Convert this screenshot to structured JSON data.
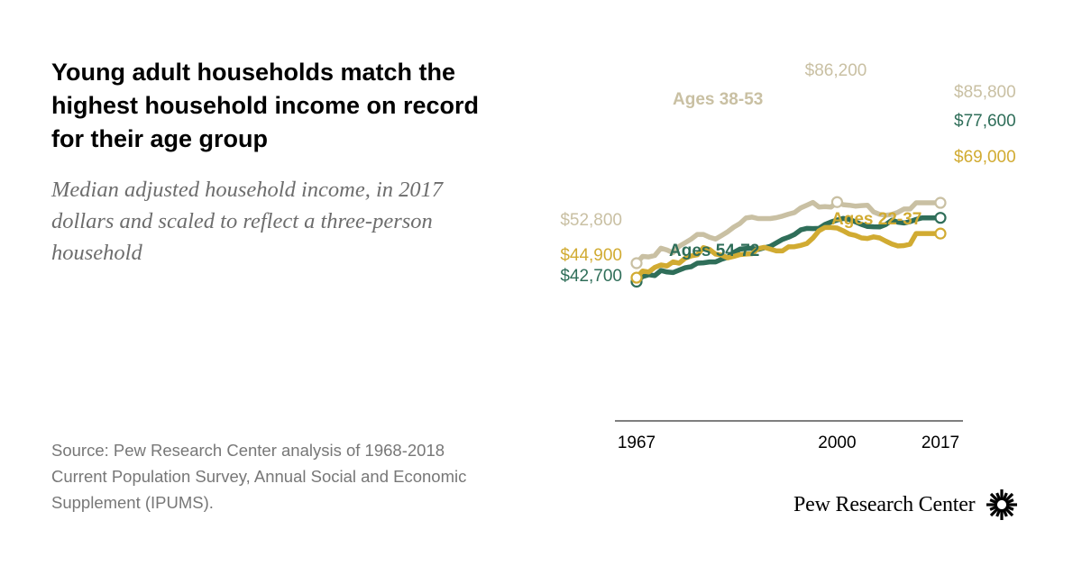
{
  "title": "Young adult households match the highest household income on record for their age group",
  "subtitle": "Median adjusted household income, in 2017 dollars and scaled to reflect a three-person household",
  "source": "Source: Pew Research Center analysis of 1968-2018 Current Population Survey, Annual Social and Economic Supplement (IPUMS).",
  "brand": {
    "name": "Pew Research Center",
    "logo_icon": "pew-sunburst-icon"
  },
  "chart_data": {
    "type": "line",
    "title": "Young adult households match the highest household income on record for their age group",
    "xlabel": "",
    "ylabel": "",
    "xlim": [
      1967,
      2017
    ],
    "ylim": [
      40000,
      90000
    ],
    "x_ticks": [
      "1967",
      "2000",
      "2017"
    ],
    "grid": false,
    "series": [
      {
        "name": "Ages 38-53",
        "label": "Ages 38-53",
        "color": "#c9c0a3",
        "start_label": "$52,800",
        "end_label": "$85,800",
        "peak_label": "$86,200",
        "peak_year": 2000,
        "x": [
          1967,
          1968,
          1969,
          1970,
          1971,
          1972,
          1973,
          1974,
          1975,
          1976,
          1977,
          1978,
          1979,
          1980,
          1981,
          1982,
          1983,
          1984,
          1985,
          1986,
          1987,
          1988,
          1989,
          1990,
          1991,
          1992,
          1993,
          1994,
          1995,
          1996,
          1997,
          1998,
          1999,
          2000,
          2001,
          2002,
          2003,
          2004,
          2005,
          2006,
          2007,
          2008,
          2009,
          2010,
          2011,
          2012,
          2013,
          2014,
          2015,
          2016,
          2017
        ],
        "values": [
          52800,
          56500,
          56200,
          57000,
          61000,
          60000,
          58500,
          62000,
          64000,
          66000,
          68500,
          68500,
          67000,
          66000,
          68000,
          70000,
          72500,
          74500,
          77500,
          78000,
          77200,
          77200,
          77200,
          77700,
          78500,
          79600,
          80500,
          83000,
          84500,
          86000,
          83500,
          83700,
          83500,
          86200,
          84800,
          84500,
          84000,
          84300,
          84500,
          80800,
          79500,
          79000,
          79400,
          80600,
          82400,
          82400,
          85800,
          85800,
          85800,
          85800,
          85800
        ]
      },
      {
        "name": "Ages 54-72",
        "label": "Ages 54-72",
        "color": "#2f6e59",
        "start_label": "$42,700",
        "end_label": "$77,600",
        "x": [
          1967,
          1968,
          1969,
          1970,
          1971,
          1972,
          1973,
          1974,
          1975,
          1976,
          1977,
          1978,
          1979,
          1980,
          1981,
          1982,
          1983,
          1984,
          1985,
          1986,
          1987,
          1988,
          1989,
          1990,
          1991,
          1992,
          1993,
          1994,
          1995,
          1996,
          1997,
          1998,
          1999,
          2000,
          2001,
          2002,
          2003,
          2004,
          2005,
          2006,
          2007,
          2008,
          2009,
          2010,
          2011,
          2012,
          2013,
          2014,
          2015,
          2016,
          2017
        ],
        "values": [
          42700,
          45500,
          46500,
          46000,
          48800,
          48000,
          47700,
          49000,
          50300,
          50900,
          52800,
          53000,
          53500,
          53500,
          55000,
          56000,
          58700,
          60500,
          60800,
          61000,
          60300,
          61200,
          62000,
          63900,
          65800,
          67000,
          68500,
          71000,
          71800,
          71700,
          71800,
          74000,
          75300,
          76400,
          77300,
          76700,
          75400,
          74000,
          72900,
          72700,
          72600,
          73900,
          76300,
          75200,
          74800,
          75500,
          76700,
          77600,
          77600,
          77600,
          77600
        ]
      },
      {
        "name": "Ages 22-37",
        "label": "Ages 22-37",
        "color": "#d1ab32",
        "start_label": "$44,900",
        "end_label": "$69,000",
        "x": [
          1967,
          1968,
          1969,
          1970,
          1971,
          1972,
          1973,
          1974,
          1975,
          1976,
          1977,
          1978,
          1979,
          1980,
          1981,
          1982,
          1983,
          1984,
          1985,
          1986,
          1987,
          1988,
          1989,
          1990,
          1991,
          1992,
          1993,
          1994,
          1995,
          1996,
          1997,
          1998,
          1999,
          2000,
          2001,
          2002,
          2003,
          2004,
          2005,
          2006,
          2007,
          2008,
          2009,
          2010,
          2011,
          2012,
          2013,
          2014,
          2015,
          2016,
          2017
        ],
        "values": [
          44900,
          48500,
          48000,
          50500,
          51800,
          51300,
          53500,
          52800,
          55500,
          56800,
          57400,
          61300,
          60300,
          57800,
          57200,
          55700,
          56500,
          57500,
          57800,
          58000,
          60800,
          61500,
          60500,
          59500,
          59500,
          61700,
          61800,
          62500,
          63500,
          66500,
          70500,
          72300,
          72300,
          72000,
          70500,
          68700,
          68000,
          66600,
          66300,
          67200,
          66600,
          64900,
          63300,
          62200,
          62400,
          63200,
          69000,
          69000,
          69000,
          69000,
          69000
        ]
      }
    ]
  }
}
